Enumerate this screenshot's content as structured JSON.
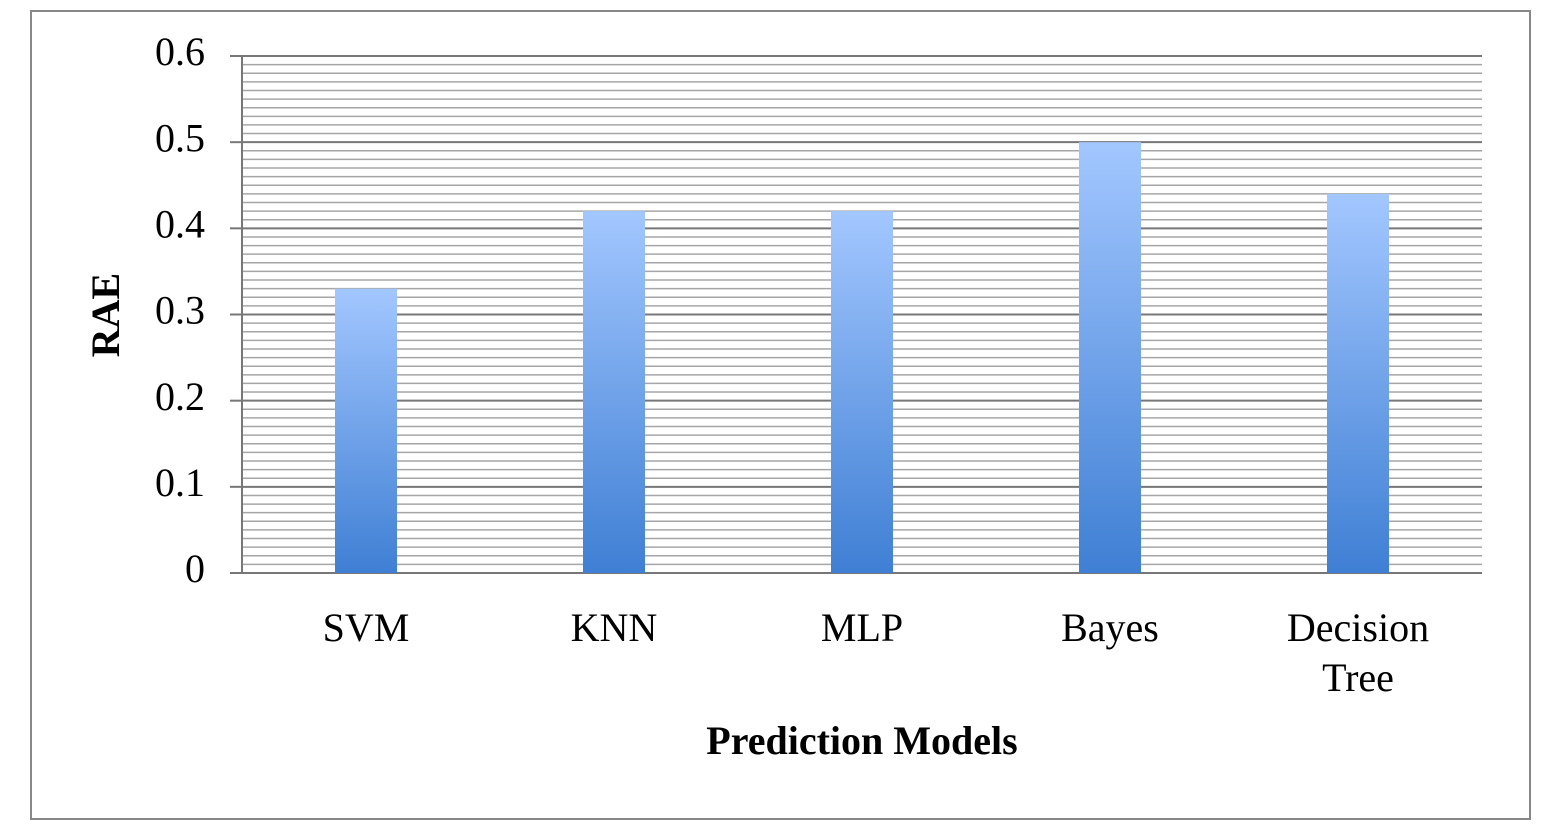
{
  "chart_data": {
    "type": "bar",
    "categories": [
      "SVM",
      "KNN",
      "MLP",
      "Bayes",
      "Decision Tree"
    ],
    "values": [
      0.33,
      0.42,
      0.42,
      0.5,
      0.44
    ],
    "color": "#3f7fd4",
    "xlabel": "Prediction Models",
    "ylabel": "RAE",
    "ylim": [
      0,
      0.6
    ],
    "yticks": [
      0,
      0.1,
      0.2,
      0.3,
      0.4,
      0.5,
      0.6
    ],
    "grid": true,
    "minor_grid": 10
  }
}
